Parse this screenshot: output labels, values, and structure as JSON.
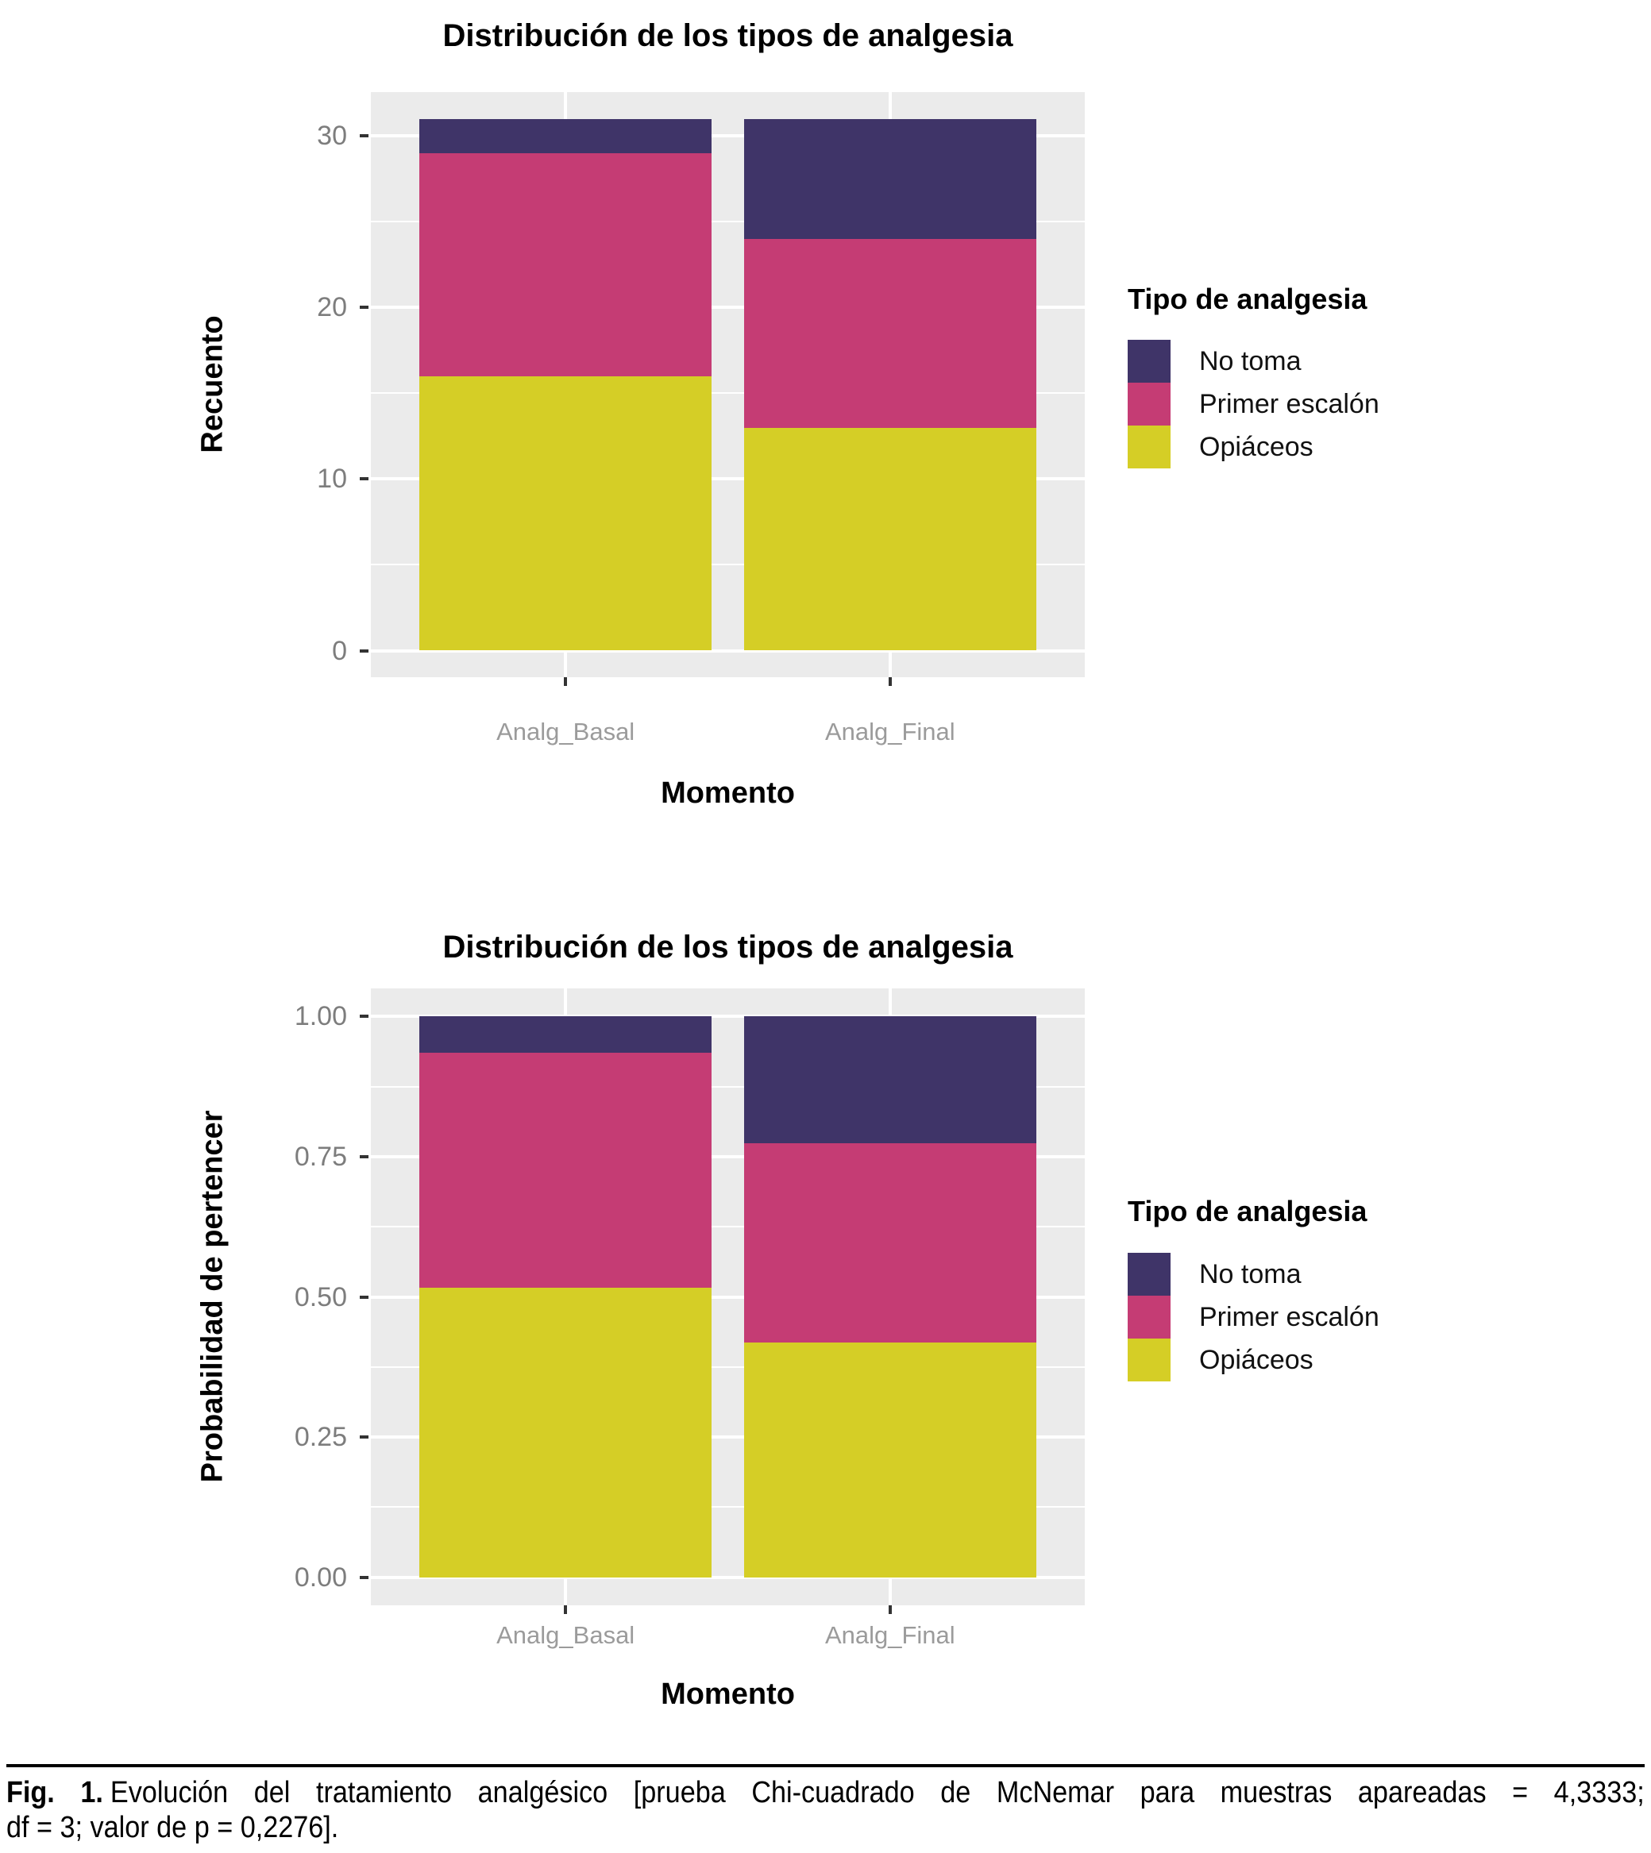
{
  "figure": {
    "caption": {
      "label": "Fig. 1.",
      "line1": "Evolución del tratamiento analgésico [prueba Chi-cuadrado de McNemar para muestras apareadas = 4,3333;",
      "line2": "df = 3; valor de p = 0,2276]."
    }
  },
  "colors": {
    "no_toma": "#3F3468",
    "primer_escalon": "#C53C74",
    "opiaceos": "#D5CE26",
    "panel_background": "#EBEBEB",
    "gridline": "#FFFFFF",
    "y_tick_label": "#7D7D7D",
    "x_category_label": "#9B9B9B"
  },
  "chart_data": [
    {
      "type": "bar",
      "stacked": true,
      "title": "Distribución de los tipos de analgesia",
      "xlabel": "Momento",
      "ylabel": "Recuento",
      "categories": [
        "Analg_Basal",
        "Analg_Final"
      ],
      "series": [
        {
          "name": "No toma",
          "color": "#3F3468",
          "values": [
            2,
            7
          ]
        },
        {
          "name": "Primer escalón",
          "color": "#C53C74",
          "values": [
            13,
            11
          ]
        },
        {
          "name": "Opiáceos",
          "color": "#D5CE26",
          "values": [
            16,
            13
          ]
        }
      ],
      "stack_totals": [
        31,
        31
      ],
      "ylim": [
        0,
        31
      ],
      "yticks": {
        "values": [
          0,
          10,
          20,
          30
        ],
        "labels": [
          "0",
          "10",
          "20",
          "30"
        ]
      },
      "yminor": [
        5,
        15,
        25
      ],
      "grid": true,
      "legend_title": "Tipo de analgesia",
      "legend_position": "right"
    },
    {
      "type": "bar",
      "stacked": true,
      "title": "Distribución de los tipos de analgesia",
      "xlabel": "Momento",
      "ylabel": "Probabilidad de pertencer",
      "categories": [
        "Analg_Basal",
        "Analg_Final"
      ],
      "series": [
        {
          "name": "No toma",
          "color": "#3F3468",
          "values": [
            0.065,
            0.226
          ]
        },
        {
          "name": "Primer escalón",
          "color": "#C53C74",
          "values": [
            0.419,
            0.355
          ]
        },
        {
          "name": "Opiáceos",
          "color": "#D5CE26",
          "values": [
            0.516,
            0.419
          ]
        }
      ],
      "stack_totals": [
        1.0,
        1.0
      ],
      "ylim": [
        0,
        1
      ],
      "yticks": {
        "values": [
          0,
          0.25,
          0.5,
          0.75,
          1.0
        ],
        "labels": [
          "0.00",
          "0.25",
          "0.50",
          "0.75",
          "1.00"
        ]
      },
      "yminor": [
        0.125,
        0.375,
        0.625,
        0.875
      ],
      "grid": true,
      "legend_title": "Tipo de analgesia",
      "legend_position": "right"
    }
  ]
}
